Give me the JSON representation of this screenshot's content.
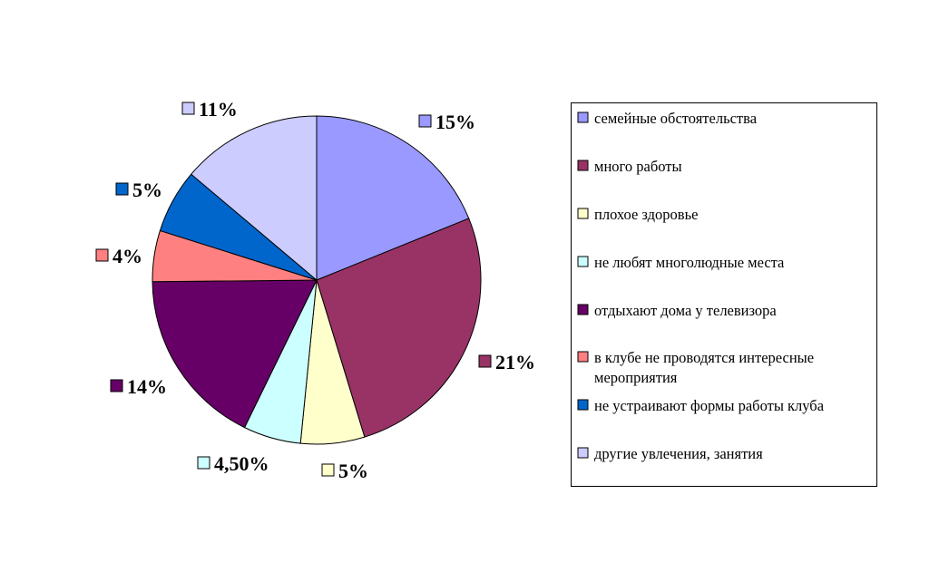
{
  "chart_data": {
    "type": "pie",
    "title": "",
    "legend_position": "right",
    "start_angle": "top, clockwise",
    "slices": [
      {
        "name": "семейные обстоятельства",
        "value": 15,
        "label": "15%",
        "color": "#9999FF"
      },
      {
        "name": "много работы",
        "value": 21,
        "label": "21%",
        "color": "#993366"
      },
      {
        "name": "плохое здоровье",
        "value": 5,
        "label": "5%",
        "color": "#FFFFCC"
      },
      {
        "name": "не любят многолюдные места",
        "value": 4.5,
        "label": "4,50%",
        "color": "#CCFFFF"
      },
      {
        "name": "отдыхают дома у телевизора",
        "value": 14,
        "label": "14%",
        "color": "#660066"
      },
      {
        "name": "в клубе не проводятся интересные мероприятия",
        "name_lines": [
          "в клубе не проводятся интересные",
          "мероприятия"
        ],
        "value": 4,
        "label": "4%",
        "color": "#FF8080"
      },
      {
        "name": "не устраивают формы работы клуба",
        "value": 5,
        "label": "5%",
        "color": "#0066CC"
      },
      {
        "name": "другие увлечения, занятия",
        "value": 11,
        "label": "11%",
        "color": "#CCCCFF"
      }
    ]
  }
}
